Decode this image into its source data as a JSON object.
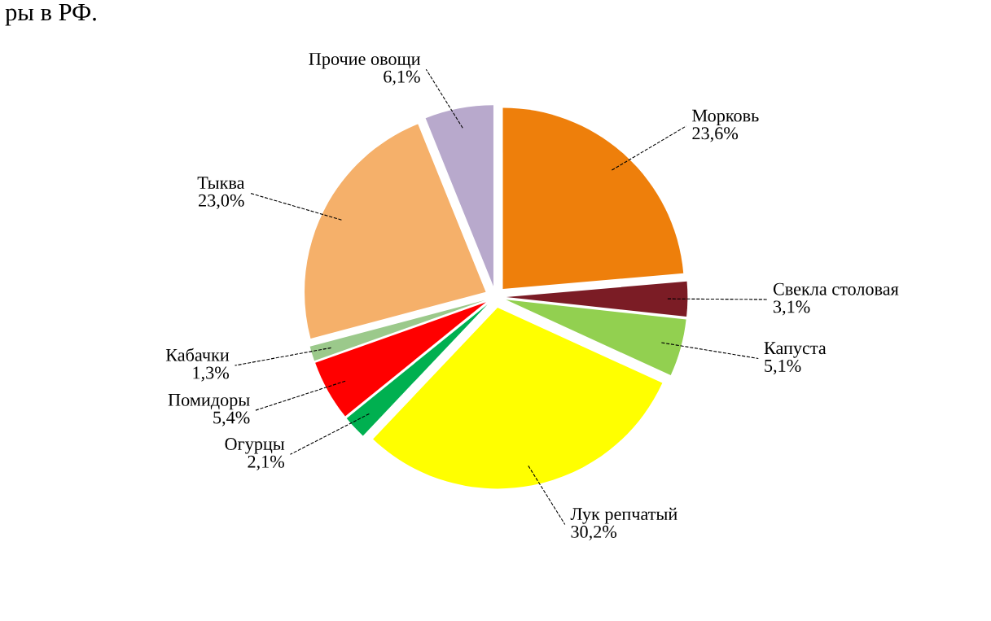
{
  "chart_data": {
    "type": "pie",
    "annotations": [
      "ры в РФ."
    ],
    "categories": [
      "Морковь",
      "Свекла столовая",
      "Капуста",
      "Лук репчатый",
      "Огурцы",
      "Помидоры",
      "Кабачки",
      "Тыква",
      "Прочие овощи"
    ],
    "values": [
      23.6,
      3.1,
      5.1,
      30.2,
      2.1,
      5.4,
      1.3,
      23.0,
      6.1
    ],
    "value_labels": [
      "23,6%",
      "3,1%",
      "5,1%",
      "30,2%",
      "2,1%",
      "5,4%",
      "1,3%",
      "23,0%",
      "6,1%"
    ],
    "colors": [
      "#ee7f0b",
      "#7b1c25",
      "#92d050",
      "#ffff00",
      "#00b050",
      "#ff0000",
      "#9bc98b",
      "#f5b06a",
      "#b8a9cc"
    ],
    "legend": false
  }
}
